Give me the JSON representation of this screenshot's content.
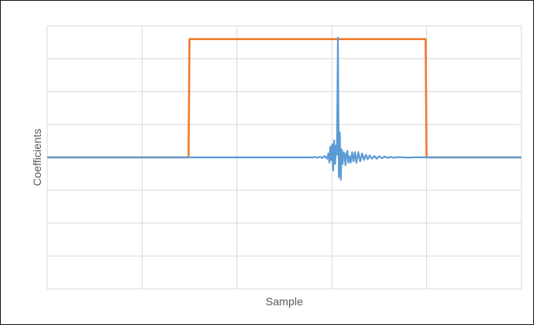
{
  "chart_data": {
    "type": "line",
    "title": "",
    "xlabel": "Sample",
    "ylabel": "Coefficients",
    "grid": true,
    "tick_labels_visible": false,
    "x_gridlines": 5,
    "y_gridlines": 8,
    "xlim": [
      0,
      1000
    ],
    "ylim": [
      -1,
      1
    ],
    "series": [
      {
        "color": "#ED7D31",
        "style": "rectangular window",
        "x": [
          0,
          298,
          300,
          798,
          800,
          1000
        ],
        "y": [
          0,
          0,
          0.9,
          0.9,
          0,
          0
        ]
      },
      {
        "color": "#5B9BD5",
        "style": "impulse response (center peak with ringing)",
        "x": [
          0,
          298,
          300,
          560,
          565,
          570,
          575,
          580,
          585,
          590,
          593,
          595,
          597,
          599,
          601,
          603,
          605,
          607,
          609,
          611,
          613,
          615,
          617,
          619,
          621,
          623,
          625,
          627,
          629,
          631,
          633,
          635,
          637,
          640,
          643,
          646,
          649,
          652,
          656,
          660,
          664,
          668,
          672,
          676,
          680,
          685,
          690,
          695,
          700,
          706,
          712,
          718,
          724,
          730,
          740,
          760,
          780,
          800,
          1000
        ],
        "y": [
          0,
          0,
          0,
          0,
          0.003,
          -0.003,
          0.005,
          -0.005,
          0.01,
          -0.01,
          0.03,
          -0.04,
          0.08,
          -0.02,
          0.1,
          -0.1,
          0.13,
          -0.05,
          0.09,
          0.02,
          0.91,
          -0.15,
          0.19,
          -0.17,
          0.06,
          -0.05,
          0.04,
          0.03,
          -0.06,
          0.02,
          0.05,
          -0.04,
          0.01,
          -0.04,
          0.04,
          -0.03,
          0.04,
          -0.04,
          0.04,
          -0.03,
          0.03,
          -0.02,
          0.02,
          -0.015,
          0.015,
          -0.01,
          0.01,
          -0.01,
          0.008,
          -0.006,
          0.006,
          -0.004,
          0.004,
          -0.003,
          0.002,
          -0.002,
          0.001,
          0,
          0
        ]
      }
    ]
  }
}
